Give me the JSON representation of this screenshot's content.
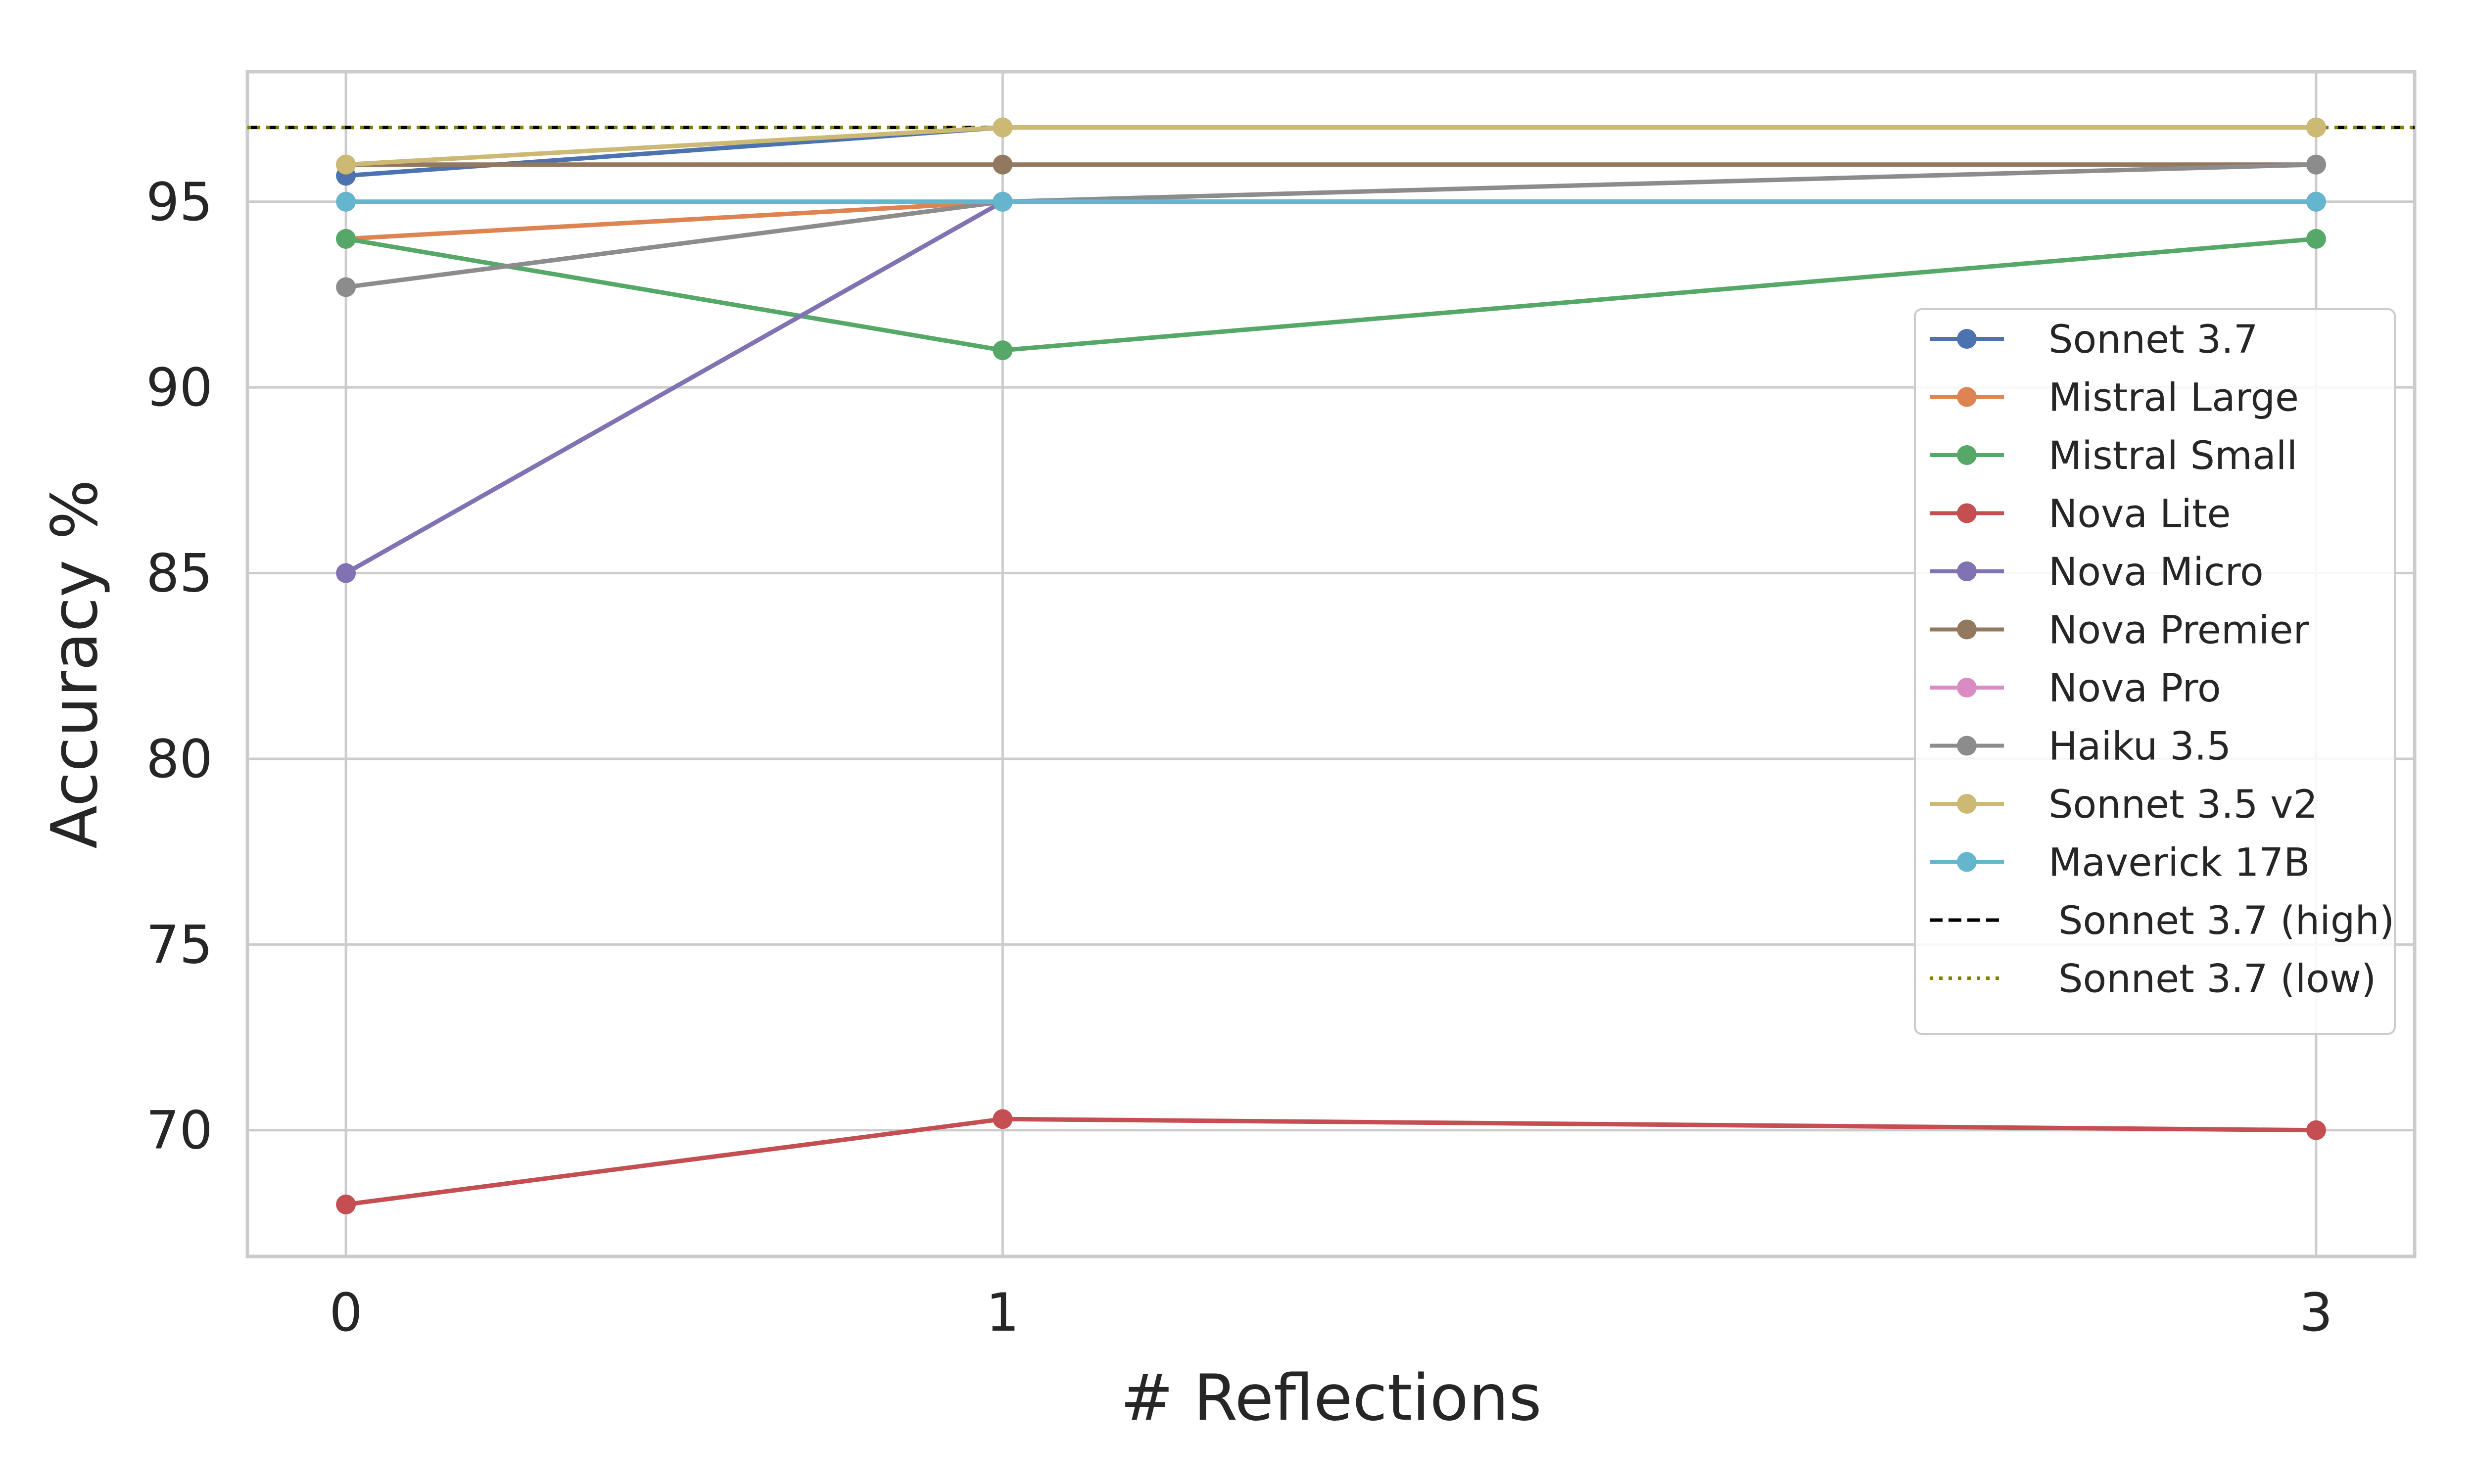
{
  "chart_data": {
    "type": "line",
    "xlabel": "# Reflections",
    "ylabel": "Accuracy %",
    "x": [
      0,
      1,
      3
    ],
    "xlim": [
      -0.15,
      3.15
    ],
    "ylim": [
      66.6,
      98.5
    ],
    "xticks": [
      "0",
      "1",
      "3"
    ],
    "yticks": [
      70,
      75,
      80,
      85,
      90,
      95
    ],
    "grid": true,
    "legend_position": "right",
    "series": [
      {
        "name": "Sonnet 3.7",
        "color": "#4c72b0",
        "values": [
          95.7,
          97,
          97
        ]
      },
      {
        "name": "Mistral Large",
        "color": "#dd8452",
        "values": [
          94,
          95,
          95
        ]
      },
      {
        "name": "Mistral Small",
        "color": "#55a868",
        "values": [
          94,
          91,
          94
        ]
      },
      {
        "name": "Nova Lite",
        "color": "#c44e52",
        "values": [
          68,
          70.3,
          70
        ]
      },
      {
        "name": "Nova Micro",
        "color": "#8172b3",
        "values": [
          85,
          95,
          95
        ]
      },
      {
        "name": "Nova Premier",
        "color": "#937860",
        "values": [
          96,
          96,
          96
        ]
      },
      {
        "name": "Nova Pro",
        "color": "#da8bc3",
        "values": [
          95,
          95,
          95
        ]
      },
      {
        "name": "Haiku 3.5",
        "color": "#8c8c8c",
        "values": [
          92.7,
          95,
          96
        ]
      },
      {
        "name": "Sonnet 3.5 v2",
        "color": "#ccb974",
        "values": [
          96,
          97,
          97
        ]
      },
      {
        "name": "Maverick 17B",
        "color": "#64b5cd",
        "values": [
          95,
          95,
          95
        ]
      }
    ],
    "reference_lines": [
      {
        "name": "Sonnet 3.7 (high)",
        "value": 97,
        "color": "#000000",
        "style": "dashed"
      },
      {
        "name": "Sonnet 3.7 (low)",
        "value": 97,
        "color": "#808000",
        "style": "dotted"
      }
    ]
  }
}
